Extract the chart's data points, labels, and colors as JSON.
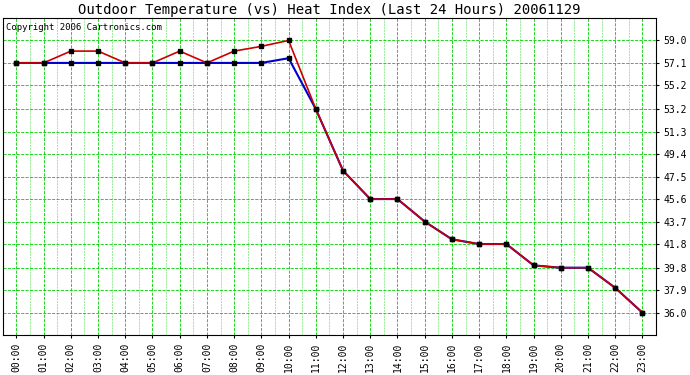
{
  "title": "Outdoor Temperature (vs) Heat Index (Last 24 Hours) 20061129",
  "copyright_text": "Copyright 2006 Cartronics.com",
  "background_color": "#ffffff",
  "plot_bg_color": "#ffffff",
  "grid_color": "#00cc00",
  "hours": [
    0,
    1,
    2,
    3,
    4,
    5,
    6,
    7,
    8,
    9,
    10,
    11,
    12,
    13,
    14,
    15,
    16,
    17,
    18,
    19,
    20,
    21,
    22,
    23
  ],
  "temp_red": [
    57.1,
    57.1,
    58.1,
    58.1,
    57.1,
    57.1,
    58.1,
    57.1,
    58.1,
    58.5,
    59.0,
    53.2,
    48.0,
    45.6,
    45.6,
    43.7,
    42.2,
    41.8,
    41.8,
    40.0,
    39.8,
    39.8,
    38.1,
    36.0
  ],
  "heat_blue": [
    57.1,
    57.1,
    57.1,
    57.1,
    57.1,
    57.1,
    57.1,
    57.1,
    57.1,
    57.1,
    57.5,
    53.2,
    48.0,
    45.6,
    45.6,
    43.7,
    42.2,
    41.8,
    41.8,
    40.0,
    39.8,
    39.8,
    38.1,
    36.0
  ],
  "red_color": "#cc0000",
  "blue_color": "#0000cc",
  "marker_color": "#000000",
  "ylim_min": 34.1,
  "ylim_max": 60.9,
  "yticks": [
    36.0,
    37.9,
    39.8,
    41.8,
    43.7,
    45.6,
    47.5,
    49.4,
    51.3,
    53.2,
    55.2,
    57.1,
    59.0
  ],
  "title_fontsize": 10,
  "tick_fontsize": 7,
  "copyright_fontsize": 6.5
}
